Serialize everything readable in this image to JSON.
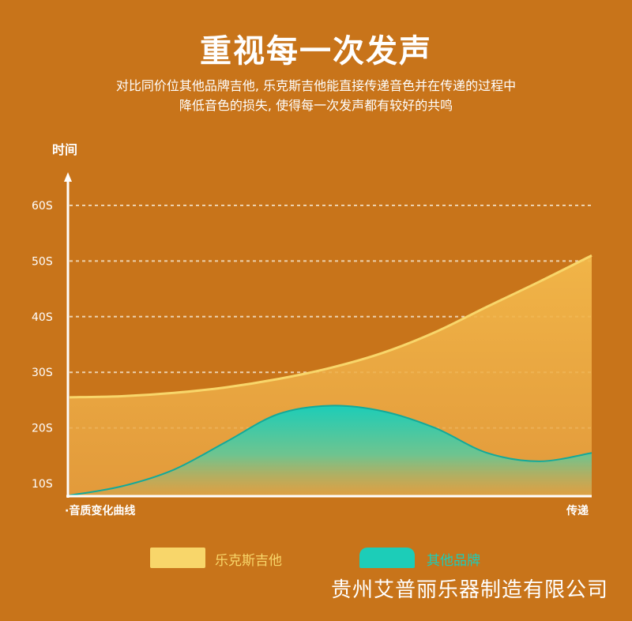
{
  "header": {
    "title": "重视每一次发声",
    "subtitle_lines": [
      "对比同价位其他品牌吉他, 乐克斯吉他能直接传递音色并在传递的过程中",
      "降低音色的损失, 使得每一次发声都有较好的共鸣"
    ]
  },
  "footer": {
    "company": "贵州艾普丽乐器制造有限公司"
  },
  "colors": {
    "background": "#c8741a",
    "series_a": "#f8d66a",
    "series_b": "#1ccdb8",
    "axis": "#ffffff",
    "grid": "#f3e2c8"
  },
  "chart_data": {
    "type": "area",
    "ylabel": "时间",
    "xlabel_left": "·音质变化曲线",
    "xlabel_right": "传递",
    "y_ticks": [
      "10S",
      "20S",
      "30S",
      "40S",
      "50S",
      "60S"
    ],
    "y_tick_values": [
      10,
      20,
      30,
      40,
      50,
      60
    ],
    "ylim": [
      7,
      63
    ],
    "x": [
      0,
      0.1,
      0.2,
      0.3,
      0.4,
      0.5,
      0.6,
      0.7,
      0.8,
      0.9,
      1.0
    ],
    "series": [
      {
        "name": "乐克斯吉他",
        "values": [
          25.5,
          25.7,
          26.3,
          27.3,
          28.8,
          30.8,
          33.5,
          37.2,
          41.8,
          46.3,
          51.0
        ]
      },
      {
        "name": "其他品牌",
        "values": [
          7.5,
          9.5,
          12.5,
          17.5,
          22.5,
          24.0,
          23.0,
          20.0,
          15.5,
          14.0,
          15.5
        ]
      }
    ],
    "grid": true,
    "legend": "bottom"
  }
}
